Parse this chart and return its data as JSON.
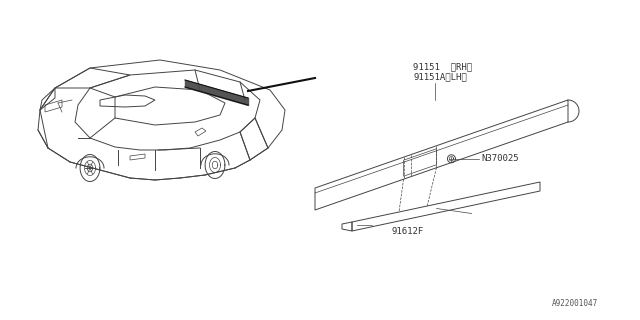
{
  "bg_color": "#ffffff",
  "line_color": "#444444",
  "dark_color": "#111111",
  "label_color": "#333333",
  "diagram_id": "A922001047",
  "labels": {
    "part1": "91151  〈RH〉",
    "part1a": "91151A〈LH〉",
    "part2": "N370025",
    "part3": "91612F"
  }
}
